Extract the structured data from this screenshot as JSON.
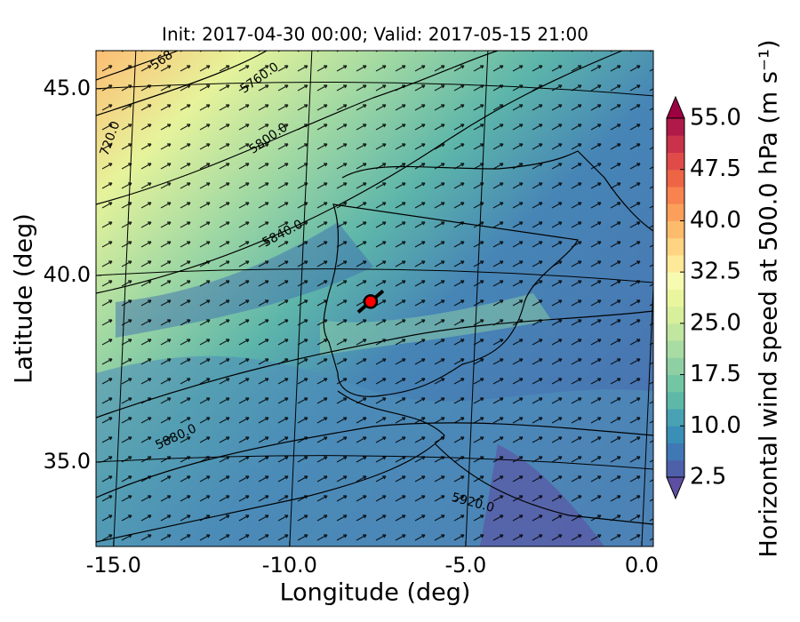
{
  "chart_data": {
    "type": "contour-map",
    "title": "Init: 2017-04-30 00:00; Valid: 2017-05-15 21:00",
    "x_label": "Longitude (deg)",
    "y_label": "Latitude (deg)",
    "xlim": [
      -15.5,
      0.33
    ],
    "ylim": [
      32.74,
      46.02
    ],
    "xticks": [
      {
        "value": -15,
        "label": "-15.0"
      },
      {
        "value": -10,
        "label": "-10.0"
      },
      {
        "value": -5,
        "label": "-5.0"
      },
      {
        "value": 0,
        "label": "0.0"
      }
    ],
    "yticks": [
      {
        "value": 35,
        "label": "35.0"
      },
      {
        "value": 40,
        "label": "40.0"
      },
      {
        "value": 45,
        "label": "45.0"
      }
    ],
    "colorbar": {
      "label": "Horizontal wind speed at 500.0 hPa (m s⁻¹)",
      "clim": [
        2.5,
        55
      ],
      "ticks": [
        {
          "value": 2.5,
          "label": "2.5"
        },
        {
          "value": 10,
          "label": "10.0"
        },
        {
          "value": 17.5,
          "label": "17.5"
        },
        {
          "value": 25,
          "label": "25.0"
        },
        {
          "value": 32.5,
          "label": "32.5"
        },
        {
          "value": 40,
          "label": "40.0"
        },
        {
          "value": 47.5,
          "label": "47.5"
        },
        {
          "value": 55,
          "label": "55.0"
        }
      ],
      "under_color": "#5e4fa2",
      "over_color": "#9e0142",
      "colors": [
        "#4f60aa",
        "#3f78b4",
        "#3a8fb7",
        "#48a2b3",
        "#5db8a8",
        "#73c6a4",
        "#8ed0a4",
        "#a8dca2",
        "#c1e69f",
        "#d8ef9b",
        "#eaf69e",
        "#f7fbb2",
        "#fee999",
        "#fed382",
        "#fdbb6c",
        "#fc9f5b",
        "#f8834f",
        "#ee6545",
        "#e04b4a",
        "#c9324a",
        "#b01a4a"
      ]
    },
    "contour_labels": [
      "568",
      "5760.0",
      "5800.0",
      "5840.0",
      "5880.0",
      "5920.0",
      "720.0"
    ],
    "marker": {
      "x": -7.7,
      "y": 39.3,
      "color": "#ff0000"
    }
  }
}
